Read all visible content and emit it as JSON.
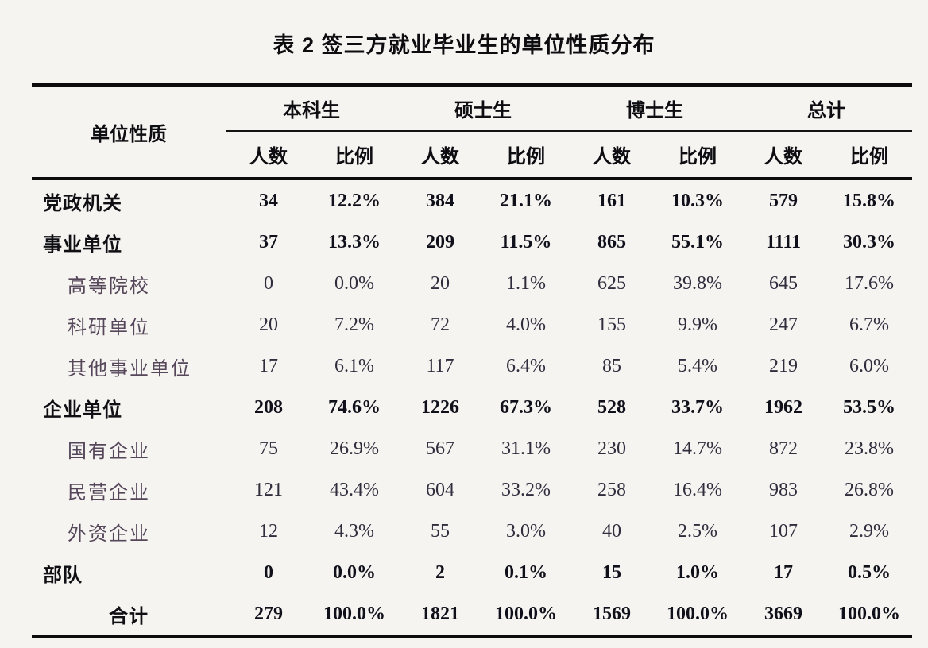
{
  "title": "表 2 签三方就业毕业生的单位性质分布",
  "table": {
    "row_header": "单位性质",
    "groups": [
      {
        "label": "本科生"
      },
      {
        "label": "硕士生"
      },
      {
        "label": "博士生"
      },
      {
        "label": "总计"
      }
    ],
    "subheaders": [
      "人数",
      "比例"
    ],
    "rows": [
      {
        "label": "党政机关",
        "level": "category",
        "values": [
          "34",
          "12.2%",
          "384",
          "21.1%",
          "161",
          "10.3%",
          "579",
          "15.8%"
        ]
      },
      {
        "label": "事业单位",
        "level": "category",
        "values": [
          "37",
          "13.3%",
          "209",
          "11.5%",
          "865",
          "55.1%",
          "1111",
          "30.3%"
        ]
      },
      {
        "label": "高等院校",
        "level": "sub",
        "values": [
          "0",
          "0.0%",
          "20",
          "1.1%",
          "625",
          "39.8%",
          "645",
          "17.6%"
        ]
      },
      {
        "label": "科研单位",
        "level": "sub",
        "values": [
          "20",
          "7.2%",
          "72",
          "4.0%",
          "155",
          "9.9%",
          "247",
          "6.7%"
        ]
      },
      {
        "label": "其他事业单位",
        "level": "sub",
        "values": [
          "17",
          "6.1%",
          "117",
          "6.4%",
          "85",
          "5.4%",
          "219",
          "6.0%"
        ]
      },
      {
        "label": "企业单位",
        "level": "category",
        "values": [
          "208",
          "74.6%",
          "1226",
          "67.3%",
          "528",
          "33.7%",
          "1962",
          "53.5%"
        ]
      },
      {
        "label": "国有企业",
        "level": "sub",
        "values": [
          "75",
          "26.9%",
          "567",
          "31.1%",
          "230",
          "14.7%",
          "872",
          "23.8%"
        ]
      },
      {
        "label": "民营企业",
        "level": "sub",
        "values": [
          "121",
          "43.4%",
          "604",
          "33.2%",
          "258",
          "16.4%",
          "983",
          "26.8%"
        ]
      },
      {
        "label": "外资企业",
        "level": "sub",
        "values": [
          "12",
          "4.3%",
          "55",
          "3.0%",
          "40",
          "2.5%",
          "107",
          "2.9%"
        ]
      },
      {
        "label": "部队",
        "level": "category",
        "values": [
          "0",
          "0.0%",
          "2",
          "0.1%",
          "15",
          "1.0%",
          "17",
          "0.5%"
        ]
      },
      {
        "label": "合计",
        "level": "total",
        "values": [
          "279",
          "100.0%",
          "1821",
          "100.0%",
          "1569",
          "100.0%",
          "3669",
          "100.0%"
        ]
      }
    ]
  },
  "colors": {
    "background": "#f5f4f1",
    "text_primary": "#0f0f14",
    "text_sub_label": "#55465a",
    "text_sub_number": "#302d3c",
    "rule": "#0c0c0c"
  }
}
